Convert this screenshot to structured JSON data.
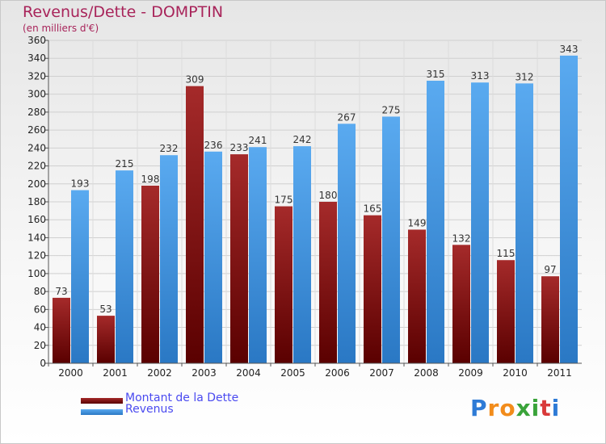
{
  "chart_data": {
    "type": "bar",
    "title": "Revenus/Dette - DOMPTIN",
    "subtitle": "(en milliers d'€)",
    "categories": [
      "2000",
      "2001",
      "2002",
      "2003",
      "2004",
      "2005",
      "2006",
      "2007",
      "2008",
      "2009",
      "2010",
      "2011"
    ],
    "series": [
      {
        "name": "Montant de la Dette",
        "color": "#7a1010",
        "values": [
          73,
          53,
          198,
          309,
          233,
          175,
          180,
          165,
          149,
          132,
          115,
          97
        ]
      },
      {
        "name": "Revenus",
        "color": "#3d8fdb",
        "values": [
          193,
          215,
          232,
          236,
          241,
          242,
          267,
          275,
          315,
          313,
          312,
          343
        ]
      }
    ],
    "ylim": [
      0,
      360
    ],
    "ytick_step": 20,
    "grid": true,
    "legend_position": "bottom-left"
  },
  "logo": {
    "text": "Proxiti",
    "letters": [
      "P",
      "r",
      "o",
      "x",
      "i",
      "t",
      "i"
    ],
    "colors": [
      "#2e7bd6",
      "#f28c1b",
      "#f28c1b",
      "#3aa33a",
      "#3aa33a",
      "#d93a3a",
      "#2e7bd6"
    ]
  }
}
